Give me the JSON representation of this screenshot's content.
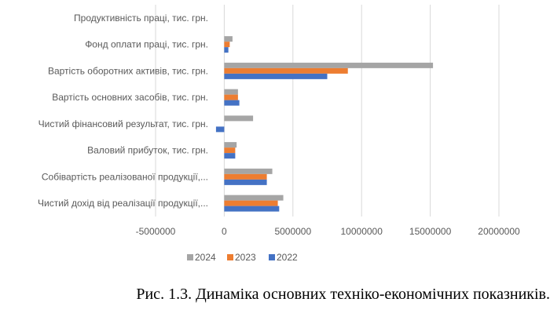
{
  "chart_data": {
    "type": "bar",
    "orientation": "horizontal",
    "categories": [
      "Продуктивність праці, тис. грн.",
      "Фонд оплати праці, тис. грн.",
      "Вартість оборотних активів, тис. грн.",
      "Вартість основних засобів, тис. грн.",
      "Чистий фінансовий результат, тис. грн.",
      "Валовий прибуток, тис. грн.",
      "Собівартість реалізованої продукції,...",
      "Чистий дохід від реалізації продукції,..."
    ],
    "series": [
      {
        "name": "2024",
        "color": "#A5A5A5",
        "values": [
          0,
          600000,
          15200000,
          1000000,
          2100000,
          900000,
          3500000,
          4300000
        ]
      },
      {
        "name": "2023",
        "color": "#ED7D31",
        "values": [
          0,
          400000,
          9000000,
          1000000,
          0,
          800000,
          3100000,
          3900000
        ]
      },
      {
        "name": "2022",
        "color": "#4472C4",
        "values": [
          0,
          300000,
          7500000,
          1100000,
          -600000,
          800000,
          3100000,
          4000000
        ]
      }
    ],
    "x_ticks": [
      "-5000000",
      "0",
      "5000000",
      "10000000",
      "15000000",
      "20000000"
    ],
    "xlim": [
      -5000000,
      20000000
    ],
    "grid": true,
    "legend_position": "bottom"
  },
  "caption": "Рис. 1.3. Динаміка основних техніко-економічних показників."
}
